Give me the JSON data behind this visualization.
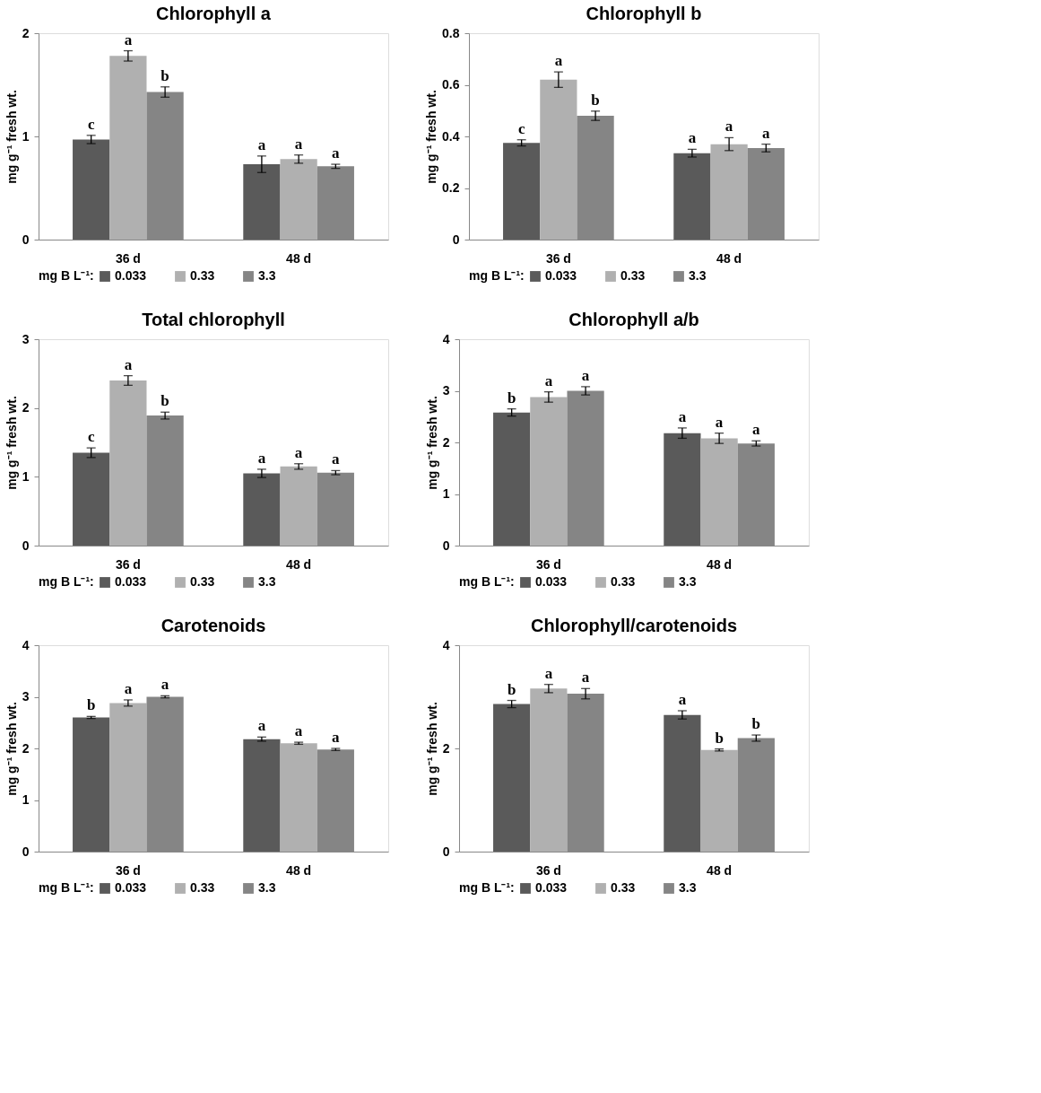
{
  "chart_data": [
    {
      "type": "bar",
      "title": "Chlorophyll a",
      "ylabel": "mg g⁻¹ fresh wt.",
      "legend_title": "mg B L⁻¹:",
      "legend": "bottom",
      "grid": false,
      "categories": [
        "36 d",
        "48 d"
      ],
      "ylim": [
        0,
        2
      ],
      "yticks": [
        0,
        1,
        2
      ],
      "series": [
        {
          "name": "0.033",
          "color": "#5a5a5a",
          "values": [
            0.97,
            0.73
          ],
          "errors": [
            0.04,
            0.08
          ],
          "value_labels": [
            "c",
            "a"
          ]
        },
        {
          "name": "0.33",
          "color": "#b0b0b0",
          "values": [
            1.78,
            0.78
          ],
          "errors": [
            0.05,
            0.04
          ],
          "value_labels": [
            "a",
            "a"
          ]
        },
        {
          "name": "3.3",
          "color": "#858585",
          "values": [
            1.43,
            0.71
          ],
          "errors": [
            0.05,
            0.02
          ],
          "value_labels": [
            "b",
            "a"
          ]
        }
      ]
    },
    {
      "type": "bar",
      "title": "Chlorophyll b",
      "ylabel": "mg g⁻¹ fresh wt.",
      "legend_title": "mg B L⁻¹:",
      "legend": "bottom",
      "grid": false,
      "categories": [
        "36 d",
        "48 d"
      ],
      "ylim": [
        0,
        0.8
      ],
      "yticks": [
        0,
        0.2,
        0.4,
        0.6,
        0.8
      ],
      "series": [
        {
          "name": "0.033",
          "color": "#5a5a5a",
          "values": [
            0.375,
            0.335
          ],
          "errors": [
            0.012,
            0.015
          ],
          "value_labels": [
            "c",
            "a"
          ]
        },
        {
          "name": "0.33",
          "color": "#b0b0b0",
          "values": [
            0.62,
            0.37
          ],
          "errors": [
            0.03,
            0.025
          ],
          "value_labels": [
            "a",
            "a"
          ]
        },
        {
          "name": "3.3",
          "color": "#858585",
          "values": [
            0.48,
            0.355
          ],
          "errors": [
            0.018,
            0.015
          ],
          "value_labels": [
            "b",
            "a"
          ]
        }
      ]
    },
    {
      "type": "bar",
      "title": "Total chlorophyll",
      "ylabel": "mg g⁻¹ fresh wt.",
      "legend_title": "mg B L⁻¹:",
      "legend": "bottom",
      "grid": false,
      "categories": [
        "36 d",
        "48 d"
      ],
      "ylim": [
        0,
        3
      ],
      "yticks": [
        0,
        1,
        2,
        3
      ],
      "series": [
        {
          "name": "0.033",
          "color": "#5a5a5a",
          "values": [
            1.35,
            1.05
          ],
          "errors": [
            0.07,
            0.06
          ],
          "value_labels": [
            "c",
            "a"
          ]
        },
        {
          "name": "0.33",
          "color": "#b0b0b0",
          "values": [
            2.4,
            1.15
          ],
          "errors": [
            0.07,
            0.04
          ],
          "value_labels": [
            "a",
            "a"
          ]
        },
        {
          "name": "3.3",
          "color": "#858585",
          "values": [
            1.89,
            1.06
          ],
          "errors": [
            0.05,
            0.03
          ],
          "value_labels": [
            "b",
            "a"
          ]
        }
      ]
    },
    {
      "type": "bar",
      "title": "Chlorophyll a/b",
      "ylabel": "mg g⁻¹ fresh wt.",
      "legend_title": "mg B L⁻¹:",
      "legend": "bottom",
      "grid": false,
      "categories": [
        "36 d",
        "48 d"
      ],
      "ylim": [
        0,
        4
      ],
      "yticks": [
        0,
        1,
        2,
        3,
        4
      ],
      "series": [
        {
          "name": "0.033",
          "color": "#5a5a5a",
          "values": [
            2.58,
            2.18
          ],
          "errors": [
            0.07,
            0.1
          ],
          "value_labels": [
            "b",
            "a"
          ]
        },
        {
          "name": "0.33",
          "color": "#b0b0b0",
          "values": [
            2.88,
            2.08
          ],
          "errors": [
            0.1,
            0.1
          ],
          "value_labels": [
            "a",
            "a"
          ]
        },
        {
          "name": "3.3",
          "color": "#858585",
          "values": [
            3.0,
            1.98
          ],
          "errors": [
            0.08,
            0.05
          ],
          "value_labels": [
            "a",
            "a"
          ]
        }
      ]
    },
    {
      "type": "bar",
      "title": "Carotenoids",
      "ylabel": "mg g⁻¹ fresh wt.",
      "legend_title": "mg B L⁻¹:",
      "legend": "bottom",
      "grid": false,
      "categories": [
        "36 d",
        "48 d"
      ],
      "ylim": [
        0,
        4
      ],
      "yticks": [
        0,
        1,
        2,
        3,
        4
      ],
      "series": [
        {
          "name": "0.033",
          "color": "#5a5a5a",
          "values": [
            2.6,
            2.18
          ],
          "errors": [
            0.02,
            0.04
          ],
          "value_labels": [
            "b",
            "a"
          ]
        },
        {
          "name": "0.33",
          "color": "#b0b0b0",
          "values": [
            2.88,
            2.1
          ],
          "errors": [
            0.06,
            0.02
          ],
          "value_labels": [
            "a",
            "a"
          ]
        },
        {
          "name": "3.3",
          "color": "#858585",
          "values": [
            3.0,
            1.98
          ],
          "errors": [
            0.02,
            0.02
          ],
          "value_labels": [
            "a",
            "a"
          ]
        }
      ]
    },
    {
      "type": "bar",
      "title": "Chlorophyll/carotenoids",
      "ylabel": "mg g⁻¹ fresh wt.",
      "legend_title": "mg B L⁻¹:",
      "legend": "bottom",
      "grid": false,
      "categories": [
        "36 d",
        "48 d"
      ],
      "ylim": [
        0,
        4
      ],
      "yticks": [
        0,
        2,
        4
      ],
      "series": [
        {
          "name": "0.033",
          "color": "#5a5a5a",
          "values": [
            2.86,
            2.65
          ],
          "errors": [
            0.07,
            0.08
          ],
          "value_labels": [
            "b",
            "a"
          ]
        },
        {
          "name": "0.33",
          "color": "#b0b0b0",
          "values": [
            3.16,
            1.97
          ],
          "errors": [
            0.08,
            0.02
          ],
          "value_labels": [
            "a",
            "b"
          ]
        },
        {
          "name": "3.3",
          "color": "#858585",
          "values": [
            3.06,
            2.2
          ],
          "errors": [
            0.1,
            0.06
          ],
          "value_labels": [
            "a",
            "b"
          ]
        }
      ]
    }
  ]
}
